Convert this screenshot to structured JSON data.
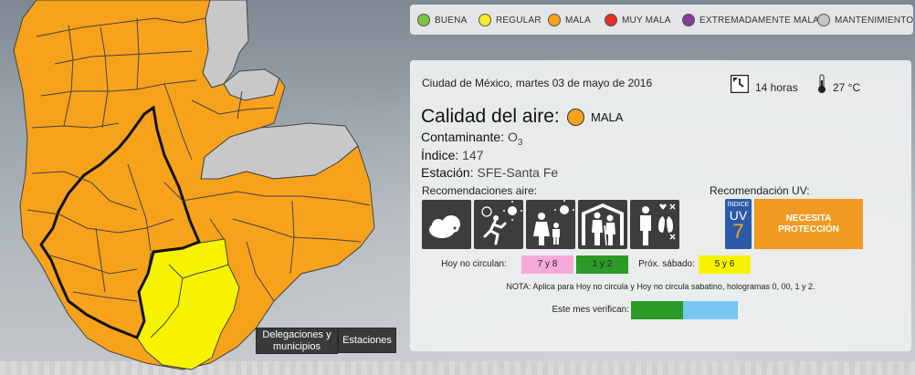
{
  "legend": [
    {
      "label": "BUENA",
      "color": "#7dc242"
    },
    {
      "label": "REGULAR",
      "color": "#f5ec2a"
    },
    {
      "label": "MALA",
      "color": "#f7a21b"
    },
    {
      "label": "MUY MALA",
      "color": "#e52d27"
    },
    {
      "label": "EXTREMADAMENTE MALA",
      "color": "#8b3a9c"
    },
    {
      "label": "MANTENIMIENTO",
      "color": "#c6c6c6"
    }
  ],
  "map": {
    "colors": {
      "mala": "#f7a21b",
      "regular": "#f7f300",
      "maintenance": "#c8c8c8",
      "border": "#444444",
      "cdmx_border": "#111111"
    },
    "buttons": {
      "delegaciones": "Delegaciones y municipios",
      "estaciones": "Estaciones"
    }
  },
  "report": {
    "header": "Ciudad de México, martes 03 de mayo de 2016",
    "hours": "14 horas",
    "temperature": "27 °C",
    "quality_label": "Calidad del aire:",
    "quality_value": "MALA",
    "quality_color": "#f7a21b",
    "pollutant_label": "Contaminante:",
    "pollutant_value": "O",
    "pollutant_sub": "3",
    "index_label": "Índice:",
    "index_value": "147",
    "station_label": "Estación:",
    "station_value": "SFE-Santa Fe",
    "air_rec_title": "Recomendaciones aire:",
    "air_icons": [
      "cloud-sad-icon",
      "running-sun-icon",
      "family-sun-icon",
      "elderly-icon",
      "lungs-icon"
    ],
    "uv_title": "Recomendación UV:",
    "uv_badge_small": "ÍNDICE",
    "uv_badge_text": "UV",
    "uv_index": "7",
    "uv_recommendation": "NECESITA PROTECCIÓN",
    "hoy_no_circulan_label": "Hoy no circulan:",
    "hoy_no_circulan_value": "7 y 8",
    "hoy_no_circulan_color": "#f5a9d8",
    "hoy_green_value": "1 y 2",
    "hoy_green_color": "#2c9a27",
    "prox_sabado_label": "Próx. sábado:",
    "prox_sabado_value": "5 y 6",
    "prox_sabado_color": "#f7f300",
    "note": "NOTA: Aplica para Hoy no circula y Hoy no circula sabatino, hologramas 0, 00, 1 y 2.",
    "verifican_label": "Este mes verifican:",
    "verifican_colors": [
      "#2c9a27",
      "#78c7f2"
    ]
  }
}
